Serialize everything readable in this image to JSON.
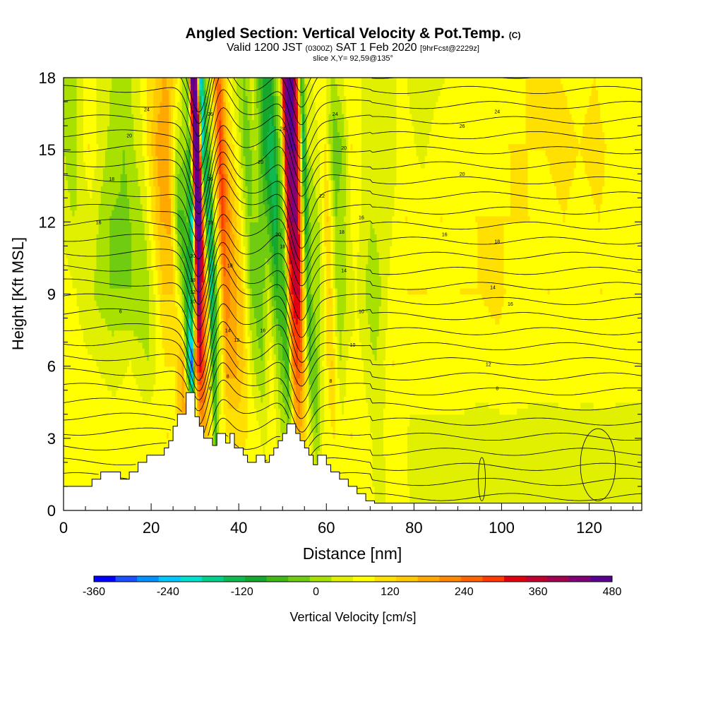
{
  "chart_data": {
    "type": "heatmap",
    "title": "Angled Section: Vertical Velocity & Pot.Temp.",
    "title_suffix": "(C)",
    "subtitle": {
      "part1": "Valid 1200 JST",
      "part2": "(0300Z)",
      "part3": "SAT 1 Feb 2020",
      "part4": "[9hrFcst@2229z]"
    },
    "slice_label": "slice X,Y= 92,59@135°",
    "xlabel": "Distance [nm]",
    "ylabel": "Height [Kft MSL]",
    "xlim": [
      0,
      132
    ],
    "ylim": [
      0,
      18
    ],
    "x_ticks": [
      0,
      20,
      40,
      60,
      80,
      100,
      120
    ],
    "y_ticks": [
      0,
      3,
      6,
      9,
      12,
      15,
      18
    ],
    "colorbar": {
      "label": "Vertical Velocity [cm/s]",
      "range": [
        -360,
        480
      ],
      "step": 30,
      "tick_labels": [
        "-360",
        "-240",
        "-120",
        "0",
        "120",
        "240",
        "360",
        "480"
      ],
      "colors": [
        "#0000ff",
        "#1a50ff",
        "#0090ff",
        "#00c8ff",
        "#00e0d0",
        "#00d08c",
        "#10b850",
        "#16a82e",
        "#40b818",
        "#70cc10",
        "#a8e000",
        "#e0f000",
        "#ffff00",
        "#ffe000",
        "#ffc800",
        "#ffa800",
        "#ff8800",
        "#ff6400",
        "#ff3a00",
        "#e00010",
        "#c00030",
        "#a00050",
        "#800078",
        "#5a0090"
      ]
    },
    "terrain_kft": [
      [
        0,
        1.0
      ],
      [
        6.5,
        1.0
      ],
      [
        6.5,
        1.3
      ],
      [
        8.5,
        1.3
      ],
      [
        8.5,
        1.6
      ],
      [
        13,
        1.6
      ],
      [
        13,
        1.3
      ],
      [
        15,
        1.3
      ],
      [
        15,
        1.6
      ],
      [
        17,
        1.6
      ],
      [
        17,
        2.0
      ],
      [
        19,
        2.0
      ],
      [
        19,
        2.3
      ],
      [
        23,
        2.3
      ],
      [
        23,
        2.6
      ],
      [
        24,
        2.6
      ],
      [
        24,
        2.9
      ],
      [
        25,
        2.9
      ],
      [
        25,
        3.5
      ],
      [
        26,
        3.5
      ],
      [
        26,
        4.0
      ],
      [
        28,
        4.0
      ],
      [
        28,
        4.9
      ],
      [
        30,
        4.9
      ],
      [
        30,
        3.9
      ],
      [
        31,
        3.9
      ],
      [
        31,
        3.5
      ],
      [
        32,
        3.5
      ],
      [
        32,
        3.0
      ],
      [
        34,
        3.0
      ],
      [
        34,
        2.7
      ],
      [
        35,
        2.7
      ],
      [
        35,
        3.2
      ],
      [
        37,
        3.2
      ],
      [
        37,
        2.8
      ],
      [
        38,
        2.8
      ],
      [
        38,
        3.2
      ],
      [
        39,
        3.2
      ],
      [
        39,
        2.6
      ],
      [
        41,
        2.6
      ],
      [
        41,
        2.3
      ],
      [
        42,
        2.3
      ],
      [
        42,
        2.0
      ],
      [
        44,
        2.0
      ],
      [
        44,
        2.3
      ],
      [
        46,
        2.3
      ],
      [
        46,
        2.0
      ],
      [
        47,
        2.0
      ],
      [
        47,
        2.3
      ],
      [
        48,
        2.3
      ],
      [
        48,
        2.6
      ],
      [
        49,
        2.6
      ],
      [
        49,
        2.9
      ],
      [
        50,
        2.9
      ],
      [
        50,
        3.2
      ],
      [
        51,
        3.2
      ],
      [
        51,
        3.6
      ],
      [
        53,
        3.6
      ],
      [
        53,
        3.2
      ],
      [
        54,
        3.2
      ],
      [
        54,
        2.9
      ],
      [
        55,
        2.9
      ],
      [
        55,
        2.6
      ],
      [
        56,
        2.6
      ],
      [
        56,
        2.3
      ],
      [
        57,
        2.3
      ],
      [
        57,
        1.9
      ],
      [
        58,
        1.9
      ],
      [
        58,
        2.3
      ],
      [
        60,
        2.3
      ],
      [
        60,
        1.9
      ],
      [
        61,
        1.9
      ],
      [
        61,
        1.6
      ],
      [
        63,
        1.6
      ],
      [
        63,
        1.3
      ],
      [
        65,
        1.3
      ],
      [
        65,
        1.0
      ],
      [
        67,
        1.0
      ],
      [
        67,
        0.7
      ],
      [
        69,
        0.7
      ],
      [
        69,
        0.4
      ],
      [
        71,
        0.4
      ],
      [
        71,
        0.3
      ],
      [
        132,
        0.3
      ]
    ],
    "vertical_velocity_cm_s": [
      {
        "x": 0,
        "v": [
          30,
          30,
          30,
          20,
          10,
          10,
          0
        ]
      },
      {
        "x": 4,
        "v": [
          30,
          20,
          10,
          0,
          -30,
          -60,
          -60
        ]
      },
      {
        "x": 8,
        "v": [
          30,
          20,
          0,
          -30,
          -10,
          30,
          10
        ]
      },
      {
        "x": 12,
        "v": [
          20,
          10,
          -10,
          -60,
          -60,
          -30,
          -10
        ]
      },
      {
        "x": 16,
        "v": [
          20,
          20,
          0,
          -60,
          -70,
          -60,
          -60
        ]
      },
      {
        "x": 20,
        "v": [
          20,
          20,
          -30,
          -60,
          -30,
          -10,
          0
        ]
      },
      {
        "x": 24,
        "v": [
          20,
          30,
          30,
          60,
          90,
          110,
          60
        ]
      },
      {
        "x": 26,
        "v": [
          20,
          20,
          30,
          60,
          100,
          110,
          100
        ]
      },
      {
        "x": 28,
        "v": [
          20,
          150,
          100,
          -30,
          -100,
          -30,
          60
        ]
      },
      {
        "x": 30,
        "v": [
          20,
          -10,
          -330,
          -180,
          -90,
          -60,
          -30
        ]
      },
      {
        "x": 31,
        "v": [
          20,
          30,
          150,
          -60,
          -240,
          -120,
          -60
        ]
      },
      {
        "x": 32,
        "v": [
          20,
          100,
          240,
          380,
          330,
          300,
          360
        ]
      },
      {
        "x": 33,
        "v": [
          20,
          60,
          150,
          200,
          380,
          430,
          300
        ]
      },
      {
        "x": 34,
        "v": [
          20,
          20,
          20,
          60,
          -30,
          -240,
          -300
        ]
      },
      {
        "x": 35,
        "v": [
          20,
          -110,
          -150,
          -210,
          -210,
          -120,
          -60
        ]
      },
      {
        "x": 36,
        "v": [
          20,
          20,
          -60,
          -90,
          -60,
          -30,
          -30
        ]
      },
      {
        "x": 38,
        "v": [
          20,
          30,
          110,
          140,
          200,
          200,
          180
        ]
      },
      {
        "x": 40,
        "v": [
          20,
          40,
          100,
          110,
          100,
          60,
          30
        ]
      },
      {
        "x": 42,
        "v": [
          20,
          30,
          60,
          60,
          30,
          0,
          -30
        ]
      },
      {
        "x": 44,
        "v": [
          20,
          20,
          -30,
          -60,
          -60,
          -90,
          -60
        ]
      },
      {
        "x": 46,
        "v": [
          20,
          -10,
          -60,
          -90,
          -60,
          -30,
          -10
        ]
      },
      {
        "x": 48,
        "v": [
          20,
          20,
          20,
          -30,
          -90,
          -130,
          -120
        ]
      },
      {
        "x": 50,
        "v": [
          20,
          -30,
          -60,
          -120,
          -160,
          -180,
          -120
        ]
      },
      {
        "x": 52,
        "v": [
          20,
          -60,
          -120,
          -90,
          -60,
          -30,
          -20
        ]
      },
      {
        "x": 53,
        "v": [
          20,
          60,
          120,
          180,
          240,
          270,
          300
        ]
      },
      {
        "x": 54,
        "v": [
          20,
          100,
          180,
          240,
          300,
          330,
          360
        ]
      },
      {
        "x": 55,
        "v": [
          20,
          60,
          150,
          240,
          300,
          330,
          330
        ]
      },
      {
        "x": 56,
        "v": [
          20,
          20,
          30,
          60,
          100,
          150,
          200
        ]
      },
      {
        "x": 57,
        "v": [
          20,
          -30,
          -90,
          -120,
          -150,
          -180,
          -120
        ]
      },
      {
        "x": 58,
        "v": [
          20,
          -60,
          -90,
          -60,
          -60,
          -30,
          -20
        ]
      },
      {
        "x": 60,
        "v": [
          20,
          20,
          0,
          -30,
          -30,
          -10,
          10
        ]
      },
      {
        "x": 62,
        "v": [
          20,
          30,
          60,
          60,
          60,
          30,
          10
        ]
      },
      {
        "x": 64,
        "v": [
          20,
          10,
          -30,
          -60,
          -60,
          -90,
          -30
        ]
      },
      {
        "x": 66,
        "v": [
          20,
          30,
          10,
          -30,
          -30,
          -60,
          -10
        ]
      },
      {
        "x": 68,
        "v": [
          20,
          20,
          10,
          0,
          20,
          30,
          30
        ]
      },
      {
        "x": 72,
        "v": [
          -10,
          -10,
          -30,
          -60,
          -30,
          -30,
          -10
        ]
      },
      {
        "x": 76,
        "v": [
          20,
          20,
          30,
          10,
          -10,
          -30,
          -30
        ]
      },
      {
        "x": 80,
        "v": [
          -10,
          -10,
          20,
          30,
          30,
          20,
          10
        ]
      },
      {
        "x": 84,
        "v": [
          -10,
          -10,
          20,
          30,
          20,
          -10,
          -30
        ]
      },
      {
        "x": 88,
        "v": [
          -10,
          -10,
          20,
          10,
          30,
          20,
          -10
        ]
      },
      {
        "x": 92,
        "v": [
          -10,
          -10,
          20,
          30,
          20,
          10,
          10
        ]
      },
      {
        "x": 96,
        "v": [
          -10,
          -10,
          10,
          30,
          30,
          20,
          10
        ]
      },
      {
        "x": 100,
        "v": [
          -10,
          -10,
          20,
          40,
          30,
          20,
          10
        ]
      },
      {
        "x": 104,
        "v": [
          -10,
          -10,
          20,
          20,
          30,
          30,
          20
        ]
      },
      {
        "x": 108,
        "v": [
          -10,
          -10,
          10,
          20,
          30,
          30,
          30
        ]
      },
      {
        "x": 112,
        "v": [
          -10,
          -10,
          10,
          30,
          20,
          30,
          40
        ]
      },
      {
        "x": 116,
        "v": [
          -10,
          -10,
          20,
          20,
          30,
          40,
          30
        ]
      },
      {
        "x": 120,
        "v": [
          -10,
          -10,
          10,
          20,
          20,
          30,
          20
        ]
      },
      {
        "x": 124,
        "v": [
          -10,
          -10,
          20,
          30,
          30,
          40,
          30
        ]
      },
      {
        "x": 128,
        "v": [
          -10,
          -10,
          10,
          20,
          20,
          20,
          10
        ]
      },
      {
        "x": 132,
        "v": [
          -10,
          -10,
          10,
          20,
          20,
          20,
          10
        ]
      }
    ],
    "vertical_velocity_levels_kft": [
      0,
      3,
      6,
      9,
      12,
      15,
      18
    ],
    "pot_temp_contour_labels": [
      {
        "x": 13,
        "y": 8.3,
        "text": "6"
      },
      {
        "x": 8,
        "y": 12.0,
        "text": "16"
      },
      {
        "x": 11,
        "y": 13.8,
        "text": "18"
      },
      {
        "x": 15,
        "y": 15.6,
        "text": "20"
      },
      {
        "x": 19,
        "y": 16.7,
        "text": "24"
      },
      {
        "x": 29.5,
        "y": 10.6,
        "text": "20"
      },
      {
        "x": 29.5,
        "y": 9.6,
        "text": "18"
      },
      {
        "x": 29.5,
        "y": 9.1,
        "text": "12"
      },
      {
        "x": 29.5,
        "y": 8.7,
        "text": "10"
      },
      {
        "x": 33.5,
        "y": 16.5,
        "text": "26"
      },
      {
        "x": 33.5,
        "y": 13.8,
        "text": "26"
      },
      {
        "x": 33.5,
        "y": 12.0,
        "text": "18"
      },
      {
        "x": 33.5,
        "y": 5.1,
        "text": "6"
      },
      {
        "x": 37.5,
        "y": 5.6,
        "text": "8"
      },
      {
        "x": 38,
        "y": 10.2,
        "text": "18"
      },
      {
        "x": 37.5,
        "y": 7.5,
        "text": "14"
      },
      {
        "x": 39.5,
        "y": 7.1,
        "text": "12"
      },
      {
        "x": 45,
        "y": 14.5,
        "text": "20"
      },
      {
        "x": 45.5,
        "y": 7.5,
        "text": "16"
      },
      {
        "x": 49,
        "y": 11.5,
        "text": "20"
      },
      {
        "x": 50,
        "y": 15.9,
        "text": "24"
      },
      {
        "x": 50,
        "y": 11.0,
        "text": "18"
      },
      {
        "x": 59,
        "y": 13.1,
        "text": "22"
      },
      {
        "x": 62,
        "y": 16.5,
        "text": "24"
      },
      {
        "x": 64,
        "y": 15.1,
        "text": "20"
      },
      {
        "x": 68,
        "y": 12.2,
        "text": "16"
      },
      {
        "x": 63.5,
        "y": 11.6,
        "text": "18"
      },
      {
        "x": 64,
        "y": 10.0,
        "text": "14"
      },
      {
        "x": 68,
        "y": 8.3,
        "text": "10"
      },
      {
        "x": 66,
        "y": 6.9,
        "text": "10"
      },
      {
        "x": 61,
        "y": 5.4,
        "text": "8"
      },
      {
        "x": 91,
        "y": 16.0,
        "text": "26"
      },
      {
        "x": 99,
        "y": 16.6,
        "text": "24"
      },
      {
        "x": 91,
        "y": 14.0,
        "text": "20"
      },
      {
        "x": 87,
        "y": 11.5,
        "text": "16"
      },
      {
        "x": 99,
        "y": 11.2,
        "text": "18"
      },
      {
        "x": 98,
        "y": 9.3,
        "text": "14"
      },
      {
        "x": 102,
        "y": 8.6,
        "text": "16"
      },
      {
        "x": 97,
        "y": 6.1,
        "text": "12"
      },
      {
        "x": 99,
        "y": 5.1,
        "text": "8"
      }
    ]
  }
}
